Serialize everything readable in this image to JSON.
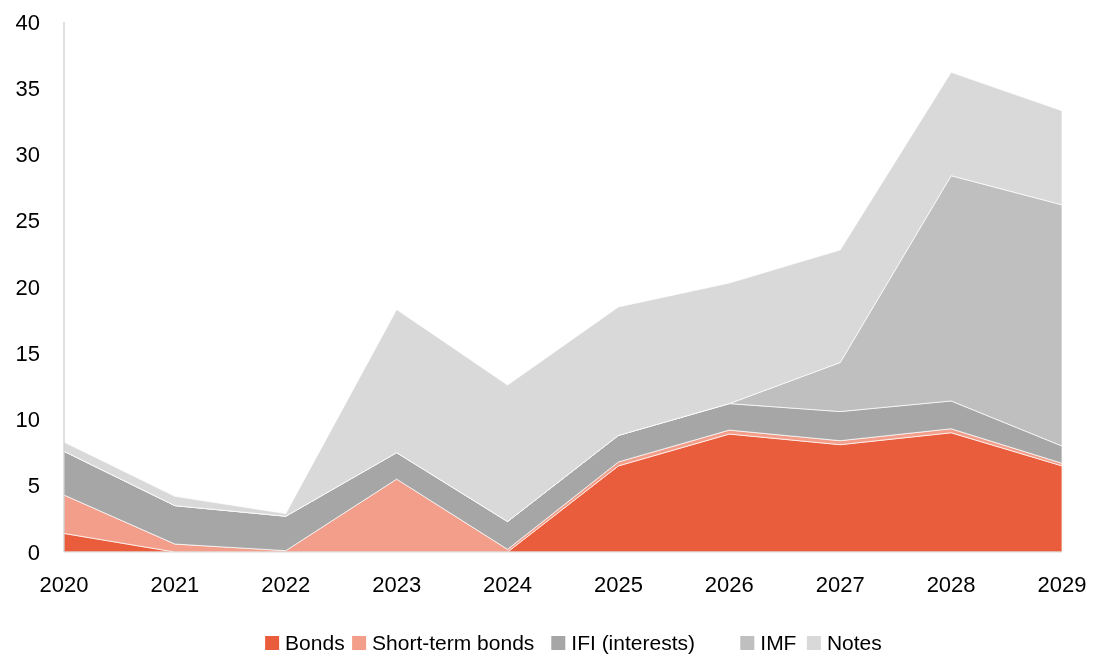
{
  "chart_data": {
    "type": "area",
    "stacked": true,
    "categories": [
      "2020",
      "2021",
      "2022",
      "2023",
      "2024",
      "2025",
      "2026",
      "2027",
      "2028",
      "2029"
    ],
    "series": [
      {
        "name": "Bonds",
        "color": "#e95d3c",
        "values": [
          1.4,
          0,
          0,
          0,
          0,
          6.5,
          8.9,
          8.1,
          9.0,
          6.5
        ]
      },
      {
        "name": "Short-term bonds",
        "color": "#f29e8a",
        "values": [
          2.9,
          0.6,
          0.1,
          5.5,
          0.2,
          0.3,
          0.3,
          0.3,
          0.3,
          0.2
        ]
      },
      {
        "name": "IFI (interests)",
        "color": "#a6a6a6",
        "values": [
          3.3,
          2.9,
          2.6,
          2.0,
          2.1,
          2.0,
          2.0,
          2.2,
          2.1,
          1.3
        ]
      },
      {
        "name": "IMF",
        "color": "#bfbfbf",
        "values": [
          0,
          0,
          0,
          0,
          0,
          0,
          0,
          3.7,
          17.0,
          18.2
        ]
      },
      {
        "name": "Notes",
        "color": "#d9d9d9",
        "values": [
          0.7,
          0.7,
          0.2,
          10.8,
          10.3,
          9.7,
          9.1,
          8.5,
          7.8,
          7.1
        ]
      }
    ],
    "ylim": [
      0,
      40
    ],
    "yticks": [
      0,
      5,
      10,
      15,
      20,
      25,
      30,
      35,
      40
    ],
    "grid": false,
    "legend": "bottom"
  }
}
